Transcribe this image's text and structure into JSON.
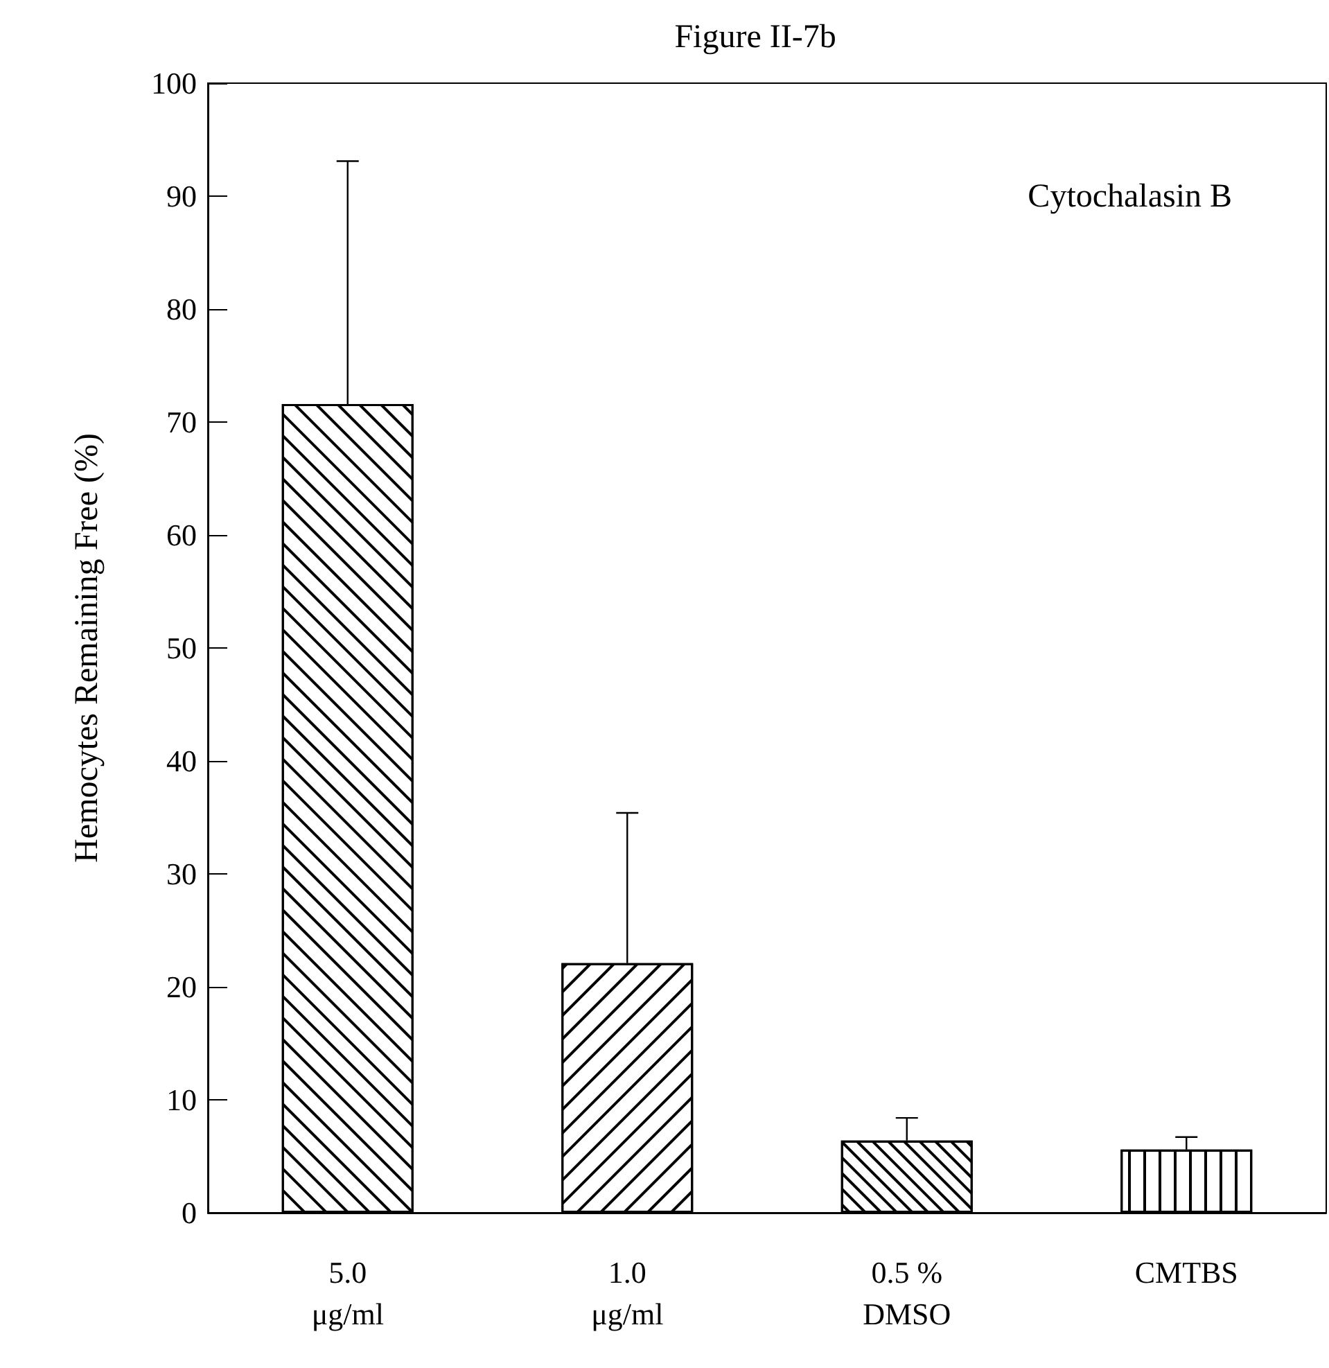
{
  "chart_data": {
    "type": "bar",
    "title": "Figure II-7b",
    "ylabel": "Hemocytes Remaining Free (%)",
    "categories": [
      "5.0\nμg/ml",
      "1.0\nμg/ml",
      "0.5 %\nDMSO",
      "CMTBS"
    ],
    "values": [
      71.6,
      22.1,
      6.4,
      5.6
    ],
    "errors": [
      [
        71.6,
        93.1
      ],
      [
        22.1,
        35.4
      ],
      [
        6.4,
        8.4
      ],
      [
        5.6,
        6.7
      ]
    ],
    "color": "#ffffff",
    "annotations": [
      "Cytochalasin B"
    ],
    "ylim": [
      0,
      100
    ],
    "yticks": [
      0,
      10,
      20,
      30,
      40,
      50,
      60,
      70,
      80,
      90,
      100
    ],
    "grid": false
  }
}
